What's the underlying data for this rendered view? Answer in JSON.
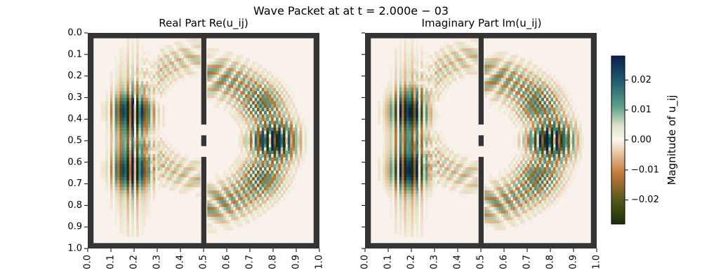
{
  "figure": {
    "title": "Wave Packet at at t = 2.000e − 03"
  },
  "chart_data": [
    {
      "type": "heatmap",
      "title": "Real Part Re(u_ij)",
      "xlim": [
        0.0,
        1.0
      ],
      "ylim": [
        1.0,
        0.0
      ],
      "xticks": [
        "0.0",
        "0.1",
        "0.2",
        "0.3",
        "0.4",
        "0.5",
        "0.6",
        "0.7",
        "0.8",
        "0.9",
        "1.0"
      ],
      "yticks": [
        "0.0",
        "0.1",
        "0.2",
        "0.3",
        "0.4",
        "0.5",
        "0.6",
        "0.7",
        "0.8",
        "0.9",
        "1.0"
      ],
      "grid": false
    },
    {
      "type": "heatmap",
      "title": "Imaginary Part Im(u_ij)",
      "xlim": [
        0.0,
        1.0
      ],
      "ylim": [
        1.0,
        0.0
      ],
      "xticks": [
        "0.0",
        "0.1",
        "0.2",
        "0.3",
        "0.4",
        "0.5",
        "0.6",
        "0.7",
        "0.8",
        "0.9",
        "1.0"
      ],
      "yticks": [],
      "grid": false
    }
  ],
  "colorbar": {
    "label": "Magnitude of u_ij",
    "range": [
      -0.028,
      0.028
    ],
    "ticks": [
      "0.02",
      "0.01",
      "0.00",
      "−0.01",
      "−0.02"
    ],
    "tick_values": [
      0.02,
      0.01,
      0.0,
      -0.01,
      -0.02
    ],
    "colors": {
      "bottom": "#1a2e08",
      "mid_low": "#c27a37",
      "center": "#fbf5ef",
      "mid_high": "#5da08a",
      "top": "#0b1f4f"
    }
  },
  "wall_color": "#353434",
  "background_color": "#f9f1ec"
}
